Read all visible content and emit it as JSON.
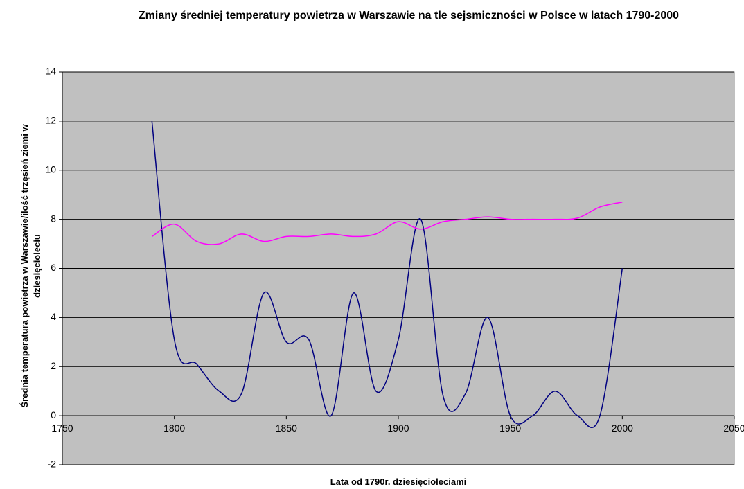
{
  "chart_data": {
    "type": "line",
    "title": "Zmiany średniej temperatury powietrza w Warszawie na tle sejsmiczności w Polsce w latach 1790-2000",
    "xlabel": "Lata od 1790r. dziesięcioleciami",
    "ylabel": "Średnia temperatura powietrza w Warszawie/ilość trzęsień ziemi w dziesięcioleciu",
    "x": [
      1790,
      1800,
      1810,
      1820,
      1830,
      1840,
      1850,
      1860,
      1870,
      1880,
      1890,
      1900,
      1910,
      1920,
      1930,
      1940,
      1950,
      1960,
      1970,
      1980,
      1990,
      2000
    ],
    "series": [
      {
        "color": "#000080",
        "values": [
          12,
          3.1,
          2.1,
          1.0,
          0.9,
          5,
          3.0,
          3.1,
          0,
          5,
          1,
          3.1,
          8,
          0.8,
          0.9,
          4,
          0,
          0,
          1,
          0,
          0,
          6
        ]
      },
      {
        "color": "#ff00ff",
        "values": [
          7.3,
          7.8,
          7.1,
          7.0,
          7.4,
          7.1,
          7.3,
          7.3,
          7.4,
          7.3,
          7.4,
          7.9,
          7.6,
          7.9,
          8.0,
          8.1,
          8.0,
          8.0,
          8.0,
          8.05,
          8.5,
          8.7
        ]
      }
    ],
    "xlim": [
      1750,
      2050
    ],
    "xticks": [
      1750,
      1800,
      1850,
      1900,
      1950,
      2000,
      2050
    ],
    "ylim": [
      -2,
      14
    ],
    "yticks": [
      -2,
      0,
      2,
      4,
      6,
      8,
      10,
      12,
      14
    ],
    "grid": true,
    "background": "#c0c0c0"
  }
}
